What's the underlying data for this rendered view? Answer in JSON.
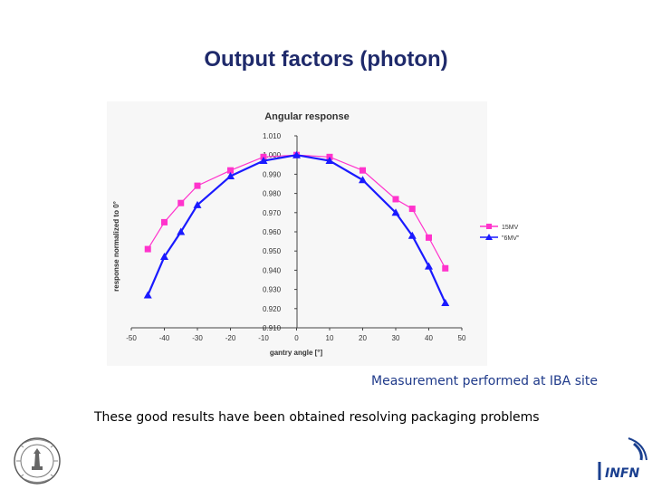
{
  "slide": {
    "title": "Output factors (photon)",
    "measurement_note": "Measurement performed at IBA site",
    "results_note": "These good results have been obtained resolving packaging problems"
  },
  "logos": {
    "left": {
      "icon": "university-seal-icon"
    },
    "right": {
      "icon": "infn-logo-icon",
      "text": "INFN",
      "color": "#1a3f8f"
    }
  },
  "chart_data": {
    "type": "line",
    "title": "Angular response",
    "xlabel": "gantry angle [°]",
    "ylabel": "response normalized to 0°",
    "xlim": [
      -50,
      50
    ],
    "ylim": [
      0.91,
      1.01
    ],
    "xticks": [
      "-50",
      "-40",
      "-30",
      "-20",
      "-10",
      "0",
      "10",
      "20",
      "30",
      "40",
      "50"
    ],
    "yticks": [
      "1.010",
      "1.000",
      "0.990",
      "0.980",
      "0.970",
      "0.960",
      "0.950",
      "0.940",
      "0.930",
      "0.920",
      "0.910"
    ],
    "grid": false,
    "legend_position": "right",
    "series": [
      {
        "name": "15MV",
        "color": "#ff33cc",
        "marker": "square",
        "points": [
          {
            "x": -45,
            "y": 0.951
          },
          {
            "x": -40,
            "y": 0.965
          },
          {
            "x": -35,
            "y": 0.975
          },
          {
            "x": -30,
            "y": 0.984
          },
          {
            "x": -20,
            "y": 0.992
          },
          {
            "x": -10,
            "y": 0.999
          },
          {
            "x": 0,
            "y": 1.0
          },
          {
            "x": 10,
            "y": 0.999
          },
          {
            "x": 20,
            "y": 0.992
          },
          {
            "x": 30,
            "y": 0.977
          },
          {
            "x": 35,
            "y": 0.972
          },
          {
            "x": 40,
            "y": 0.957
          },
          {
            "x": 45,
            "y": 0.941
          }
        ]
      },
      {
        "name": "\"6MV\"",
        "color": "#1a1aff",
        "marker": "triangle",
        "points": [
          {
            "x": -45,
            "y": 0.927
          },
          {
            "x": -40,
            "y": 0.947
          },
          {
            "x": -35,
            "y": 0.96
          },
          {
            "x": -30,
            "y": 0.974
          },
          {
            "x": -20,
            "y": 0.989
          },
          {
            "x": -10,
            "y": 0.997
          },
          {
            "x": 0,
            "y": 1.0
          },
          {
            "x": 10,
            "y": 0.997
          },
          {
            "x": 20,
            "y": 0.987
          },
          {
            "x": 30,
            "y": 0.97
          },
          {
            "x": 35,
            "y": 0.958
          },
          {
            "x": 40,
            "y": 0.942
          },
          {
            "x": 45,
            "y": 0.923
          }
        ]
      }
    ]
  }
}
